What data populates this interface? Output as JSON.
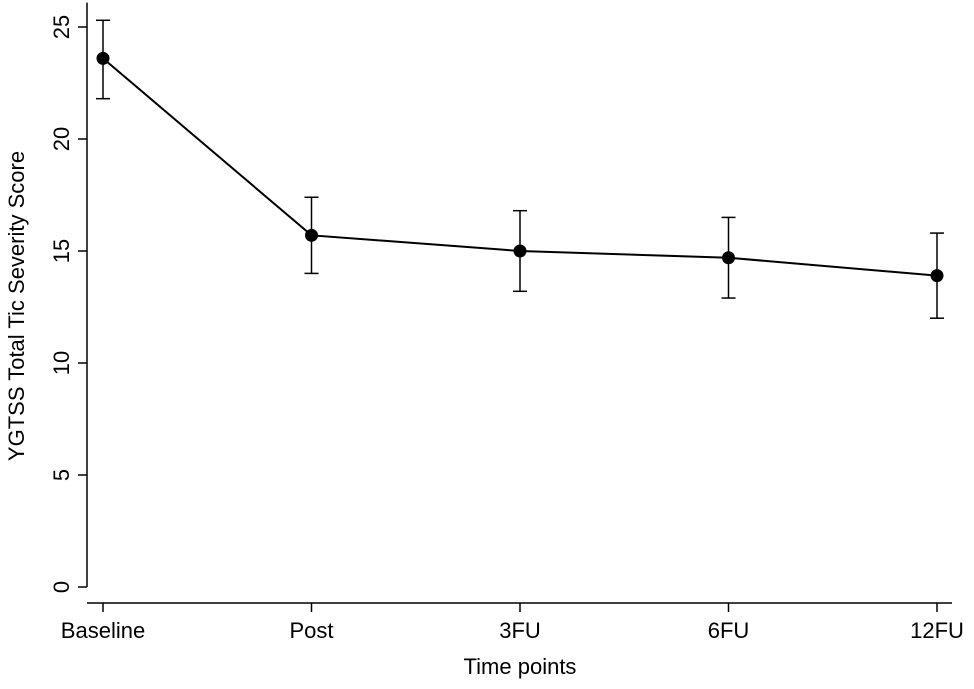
{
  "chart_data": {
    "type": "line",
    "title": "",
    "xlabel": "Time points",
    "ylabel": "YGTSS Total Tic Severity Score",
    "categories": [
      "Baseline",
      "Post",
      "3FU",
      "6FU",
      "12FU"
    ],
    "series": [
      {
        "values": [
          23.6,
          15.7,
          15.0,
          14.7,
          13.9
        ],
        "error_lower": [
          21.8,
          14.0,
          13.2,
          12.9,
          12.0
        ],
        "error_upper": [
          25.3,
          17.4,
          16.8,
          16.5,
          15.8
        ]
      }
    ],
    "ylim": [
      0,
      26
    ],
    "yticks": [
      0,
      5,
      10,
      15,
      20,
      25
    ],
    "grid": false,
    "legend": "none"
  }
}
